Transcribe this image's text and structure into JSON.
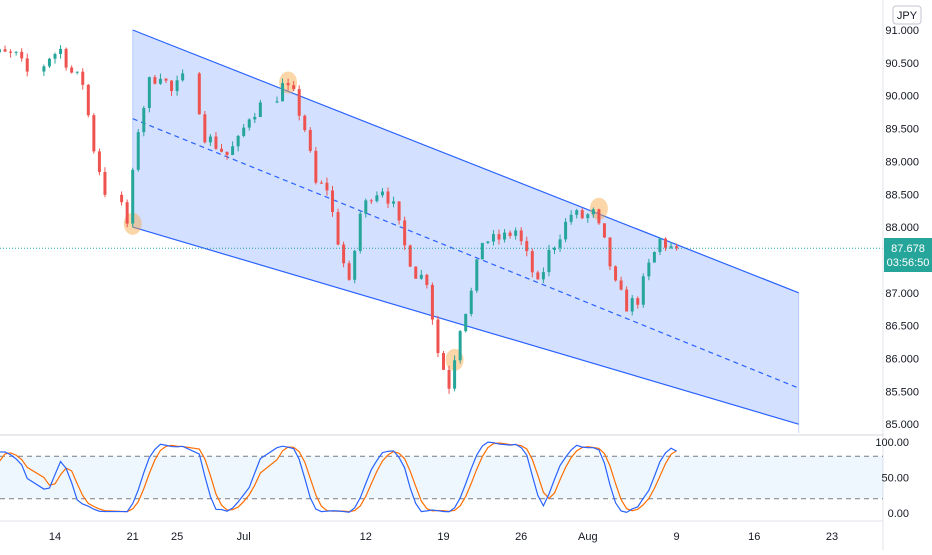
{
  "currency_badge": "JPY",
  "last_price": {
    "value": "87.678",
    "countdown": "03:56:50"
  },
  "colors": {
    "up": "#26a69a",
    "down": "#ef5350",
    "channel_line": "#2962ff",
    "channel_fill": "#2962ff",
    "highlight": "#f7a541",
    "stoch_k": "#2962ff",
    "stoch_d": "#ff6d00",
    "price_line": "#26a69a"
  },
  "chart_data": [
    {
      "type": "candlestick",
      "title": "",
      "price_axis_ticks": [
        "91.000",
        "90.500",
        "90.000",
        "89.500",
        "89.000",
        "88.500",
        "88.000",
        "87.500",
        "87.000",
        "86.500",
        "86.000",
        "85.500",
        "85.000"
      ],
      "ylim": [
        85.0,
        91.0
      ],
      "time_axis_ticks": [
        "14",
        "21",
        "25",
        "Jul",
        "12",
        "19",
        "26",
        "Aug",
        "9",
        "16",
        "23"
      ],
      "grid": false,
      "last_price": 87.678,
      "channel": {
        "upper": [
          [
            "Jun 21",
            91.0
          ],
          [
            "Aug 20",
            87.0
          ]
        ],
        "lower": [
          [
            "Jun 21",
            88.0
          ],
          [
            "Aug 20",
            85.0
          ]
        ],
        "mid": [
          [
            "Jun 21",
            89.65
          ],
          [
            "Aug 20",
            85.55
          ]
        ]
      },
      "highlighted_pivots": [
        {
          "date": "Jun 21",
          "price": 88.05
        },
        {
          "date": "Jul 5",
          "price": 90.2
        },
        {
          "date": "Jul 20",
          "price": 85.98
        },
        {
          "date": "Aug 2",
          "price": 88.28
        }
      ],
      "anchors": [
        [
          "Jun 7",
          90.45
        ],
        [
          "Jun 9",
          90.65
        ],
        [
          "Jun 11",
          90.6
        ],
        [
          "Jun 12",
          90.35
        ],
        [
          "Jun 14",
          90.6
        ],
        [
          "Jun 15",
          90.7
        ],
        [
          "Jun 16",
          90.35
        ],
        [
          "Jun 17",
          90.2
        ],
        [
          "Jun 18",
          89.2
        ],
        [
          "Jun 20",
          88.55
        ],
        [
          "Jun 21",
          88.05
        ],
        [
          "Jun 22",
          89.5
        ],
        [
          "Jun 23",
          90.2
        ],
        [
          "Jun 24",
          90.35
        ],
        [
          "Jun 25",
          90.05
        ],
        [
          "Jun 26",
          90.25
        ],
        [
          "Jun 28",
          89.4
        ],
        [
          "Jun 30",
          89.1
        ],
        [
          "Jul 1",
          89.3
        ],
        [
          "Jul 2",
          89.7
        ],
        [
          "Jul 3",
          89.85
        ],
        [
          "Jul 5",
          90.15
        ],
        [
          "Jul 6",
          90.0
        ],
        [
          "Jul 7",
          89.5
        ],
        [
          "Jul 8",
          88.65
        ],
        [
          "Jul 9",
          88.6
        ],
        [
          "Jul 10",
          87.8
        ],
        [
          "Jul 11",
          87.1
        ],
        [
          "Jul 12",
          88.2
        ],
        [
          "Jul 13",
          88.5
        ],
        [
          "Jul 14",
          88.6
        ],
        [
          "Jul 15",
          88.3
        ],
        [
          "Jul 16",
          87.7
        ],
        [
          "Jul 17",
          87.3
        ],
        [
          "Jul 18",
          87.2
        ],
        [
          "Jul 19",
          86.1
        ],
        [
          "Jul 20",
          85.6
        ],
        [
          "Jul 21",
          86.5
        ],
        [
          "Jul 22",
          87.0
        ],
        [
          "Jul 23",
          87.8
        ],
        [
          "Jul 24",
          87.8
        ],
        [
          "Jul 25",
          87.85
        ],
        [
          "Jul 26",
          87.95
        ],
        [
          "Jul 27",
          87.55
        ],
        [
          "Jul 28",
          87.1
        ],
        [
          "Jul 29",
          87.6
        ],
        [
          "Jul 30",
          87.9
        ],
        [
          "Jul 31",
          88.2
        ],
        [
          "Aug 1",
          88.15
        ],
        [
          "Aug 2",
          88.2
        ],
        [
          "Aug 3",
          87.75
        ],
        [
          "Aug 4",
          87.1
        ],
        [
          "Aug 5",
          86.8
        ],
        [
          "Aug 6",
          86.9
        ],
        [
          "Aug 7",
          87.4
        ],
        [
          "Aug 8",
          87.8
        ],
        [
          "Aug 9",
          87.68
        ]
      ]
    },
    {
      "type": "line",
      "title": "",
      "indicator_axis_ticks": [
        "100.00",
        "50.00",
        "0.00"
      ],
      "ylim": [
        0,
        100
      ],
      "bands": [
        80,
        20
      ],
      "series": [
        {
          "role": "%K",
          "values_note": "oscillator 0–100 following price swings",
          "values": []
        },
        {
          "role": "%D",
          "values": []
        }
      ]
    }
  ]
}
